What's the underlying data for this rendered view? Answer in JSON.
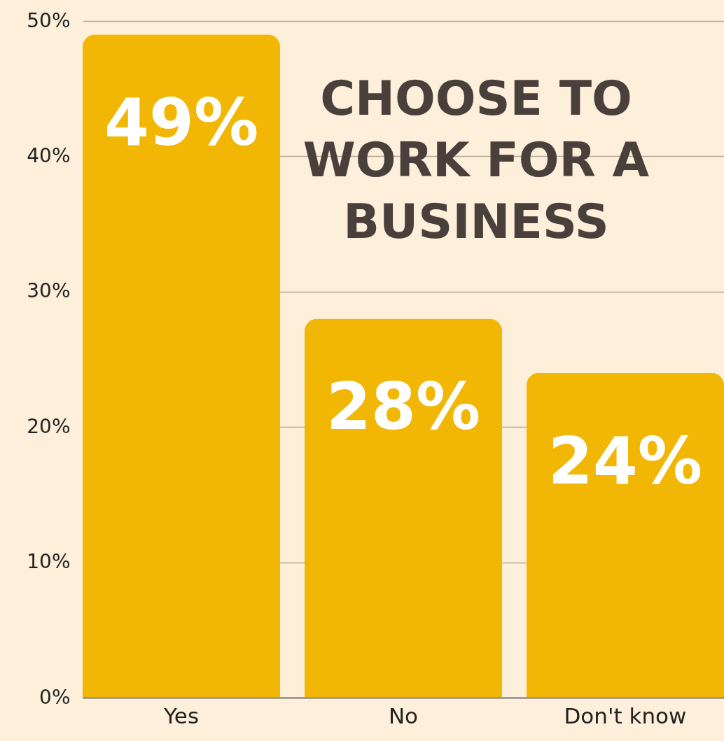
{
  "chart_data": {
    "type": "bar",
    "title": "CHOOSE TO WORK FOR A BUSINESS",
    "categories": [
      "Yes",
      "No",
      "Don't know"
    ],
    "values": [
      49,
      28,
      24
    ],
    "value_labels": [
      "49%",
      "28%",
      "24%"
    ],
    "color": "#f2b705",
    "ylim": [
      0,
      50
    ],
    "yticks": [
      {
        "value": 0,
        "label": "0%"
      },
      {
        "value": 10,
        "label": "10%"
      },
      {
        "value": 20,
        "label": "20%"
      },
      {
        "value": 30,
        "label": "30%"
      },
      {
        "value": 40,
        "label": "40%"
      },
      {
        "value": 50,
        "label": "50%"
      }
    ],
    "grid": "y"
  }
}
